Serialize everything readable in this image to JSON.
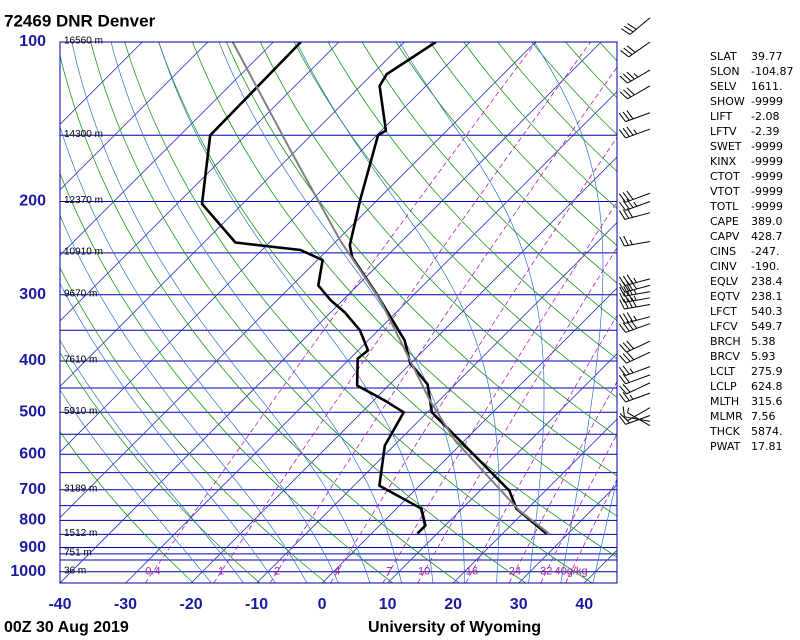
{
  "chart_data": {
    "type": "skewt",
    "title": "72469 DNR Denver",
    "footer_left": "00Z 30 Aug 2019",
    "footer_right": "University of Wyoming",
    "xlim": [
      -40,
      45
    ],
    "xticks": [
      -40,
      -30,
      -20,
      -10,
      0,
      10,
      20,
      30,
      40
    ],
    "ylim": [
      100,
      1050
    ],
    "ylog": true,
    "yticks": [
      100,
      200,
      300,
      400,
      500,
      600,
      700,
      800,
      900,
      1000
    ],
    "isobars": [
      100,
      150,
      200,
      250,
      300,
      350,
      400,
      450,
      500,
      550,
      600,
      650,
      700,
      750,
      800,
      850,
      900,
      925,
      950,
      1000
    ],
    "isotherms": [
      -110,
      -100,
      -90,
      -80,
      -70,
      -60,
      -50,
      -40,
      -30,
      -20,
      -10,
      0,
      10,
      20,
      30,
      40
    ],
    "dry_adiabats": [
      250,
      260,
      270,
      280,
      290,
      300,
      310,
      320,
      330,
      340,
      350,
      360,
      370,
      380,
      390,
      400,
      410,
      420,
      430,
      440,
      450,
      460,
      470,
      480
    ],
    "moist_adiabats": [
      -20,
      -15,
      -10,
      -5,
      0,
      5,
      10,
      15,
      20,
      25,
      30,
      35,
      40
    ],
    "mixing_ratios": [
      0.4,
      1,
      2,
      4,
      7,
      10,
      16,
      24,
      32,
      {
        "value": 40,
        "label": "40g/kg"
      }
    ],
    "heights": [
      {
        "pressure": 100,
        "label": "16560 m"
      },
      {
        "pressure": 150,
        "label": "14300 m"
      },
      {
        "pressure": 200,
        "label": "12370 m"
      },
      {
        "pressure": 250,
        "label": "10910 m"
      },
      {
        "pressure": 300,
        "label": "9670 m"
      },
      {
        "pressure": 400,
        "label": "7610 m"
      },
      {
        "pressure": 500,
        "label": "5910 m"
      },
      {
        "pressure": 700,
        "label": "3189 m"
      },
      {
        "pressure": 850,
        "label": "1512 m"
      },
      {
        "pressure": 925,
        "label": "751 m"
      },
      {
        "pressure": 1000,
        "label": "36 m"
      }
    ],
    "series": [
      {
        "name": "Temperature",
        "color": "#000000",
        "pressure": [
          847,
          760,
          703,
          500,
          443,
          404,
          366,
          301,
          255,
          242,
          199,
          150,
          147,
          121,
          115,
          100
        ],
        "values": [
          26.7,
          18.3,
          14.5,
          -9.3,
          -14.2,
          -20.1,
          -24.4,
          -35.4,
          -45.1,
          -47.3,
          -52.6,
          -59.8,
          -59.3,
          -67.1,
          -67.8,
          -65.2
        ]
      },
      {
        "name": "Dewpoint",
        "color": "#000000",
        "pressure": [
          847,
          818,
          760,
          688,
          578,
          500,
          475,
          445,
          396,
          382,
          350,
          324,
          307,
          288,
          258,
          247,
          239,
          202,
          150,
          100
        ],
        "values": [
          7.0,
          7.0,
          3.8,
          -6.1,
          -11.4,
          -13.6,
          -18.3,
          -24.8,
          -28.8,
          -28.5,
          -32.8,
          -37.8,
          -41.9,
          -46.0,
          -49.2,
          -54.1,
          -65.2,
          -76.2,
          -85.4,
          -85.8
        ]
      },
      {
        "name": "Parcel",
        "color": "#808080",
        "pressure": [
          847,
          767,
          565,
          475,
          307,
          237,
          160,
          100
        ],
        "values": [
          27.1,
          19.1,
          -1.5,
          -11.4,
          -34.3,
          -49.5,
          -70.9,
          -96.2
        ]
      }
    ],
    "winds": [
      [
        90,
        230,
        30
      ],
      [
        100,
        235,
        30
      ],
      [
        113,
        240,
        35
      ],
      [
        121,
        240,
        30
      ],
      [
        136,
        250,
        30
      ],
      [
        146,
        250,
        35
      ],
      [
        193,
        250,
        30
      ],
      [
        200,
        250,
        35
      ],
      [
        210,
        255,
        30
      ],
      [
        238,
        260,
        25
      ],
      [
        280,
        255,
        35
      ],
      [
        288,
        255,
        40
      ],
      [
        296,
        260,
        35
      ],
      [
        304,
        260,
        35
      ],
      [
        313,
        260,
        40
      ],
      [
        330,
        255,
        35
      ],
      [
        340,
        250,
        40
      ],
      [
        367,
        245,
        30
      ],
      [
        385,
        245,
        30
      ],
      [
        410,
        250,
        25
      ],
      [
        425,
        250,
        20
      ],
      [
        440,
        245,
        20
      ],
      [
        460,
        250,
        25
      ],
      [
        490,
        240,
        10
      ],
      [
        507,
        250,
        15
      ],
      [
        520,
        280,
        10
      ],
      [
        530,
        300,
        5
      ]
    ],
    "indices": [
      [
        "SLAT",
        "39.77"
      ],
      [
        "SLON",
        "-104.87"
      ],
      [
        "SELV",
        "1611."
      ],
      [
        "SHOW",
        "-9999"
      ],
      [
        "LIFT",
        "-2.08"
      ],
      [
        "LFTV",
        "-2.39"
      ],
      [
        "SWET",
        "-9999"
      ],
      [
        "KINX",
        "-9999"
      ],
      [
        "CTOT",
        "-9999"
      ],
      [
        "VTOT",
        "-9999"
      ],
      [
        "TOTL",
        "-9999"
      ],
      [
        "CAPE",
        "389.0"
      ],
      [
        "CAPV",
        "428.7"
      ],
      [
        "CINS",
        "-247."
      ],
      [
        "CINV",
        "-190."
      ],
      [
        "EQLV",
        "238.4"
      ],
      [
        "EQTV",
        "238.1"
      ],
      [
        "LFCT",
        "540.3"
      ],
      [
        "LFCV",
        "549.7"
      ],
      [
        "BRCH",
        "5.38"
      ],
      [
        "BRCV",
        "5.93"
      ],
      [
        "LCLT",
        "275.9"
      ],
      [
        "LCLP",
        "624.8"
      ],
      [
        "MLTH",
        "315.6"
      ],
      [
        "MLMR",
        "7.56"
      ],
      [
        "THCK",
        "5874."
      ],
      [
        "PWAT",
        "17.81"
      ]
    ]
  }
}
